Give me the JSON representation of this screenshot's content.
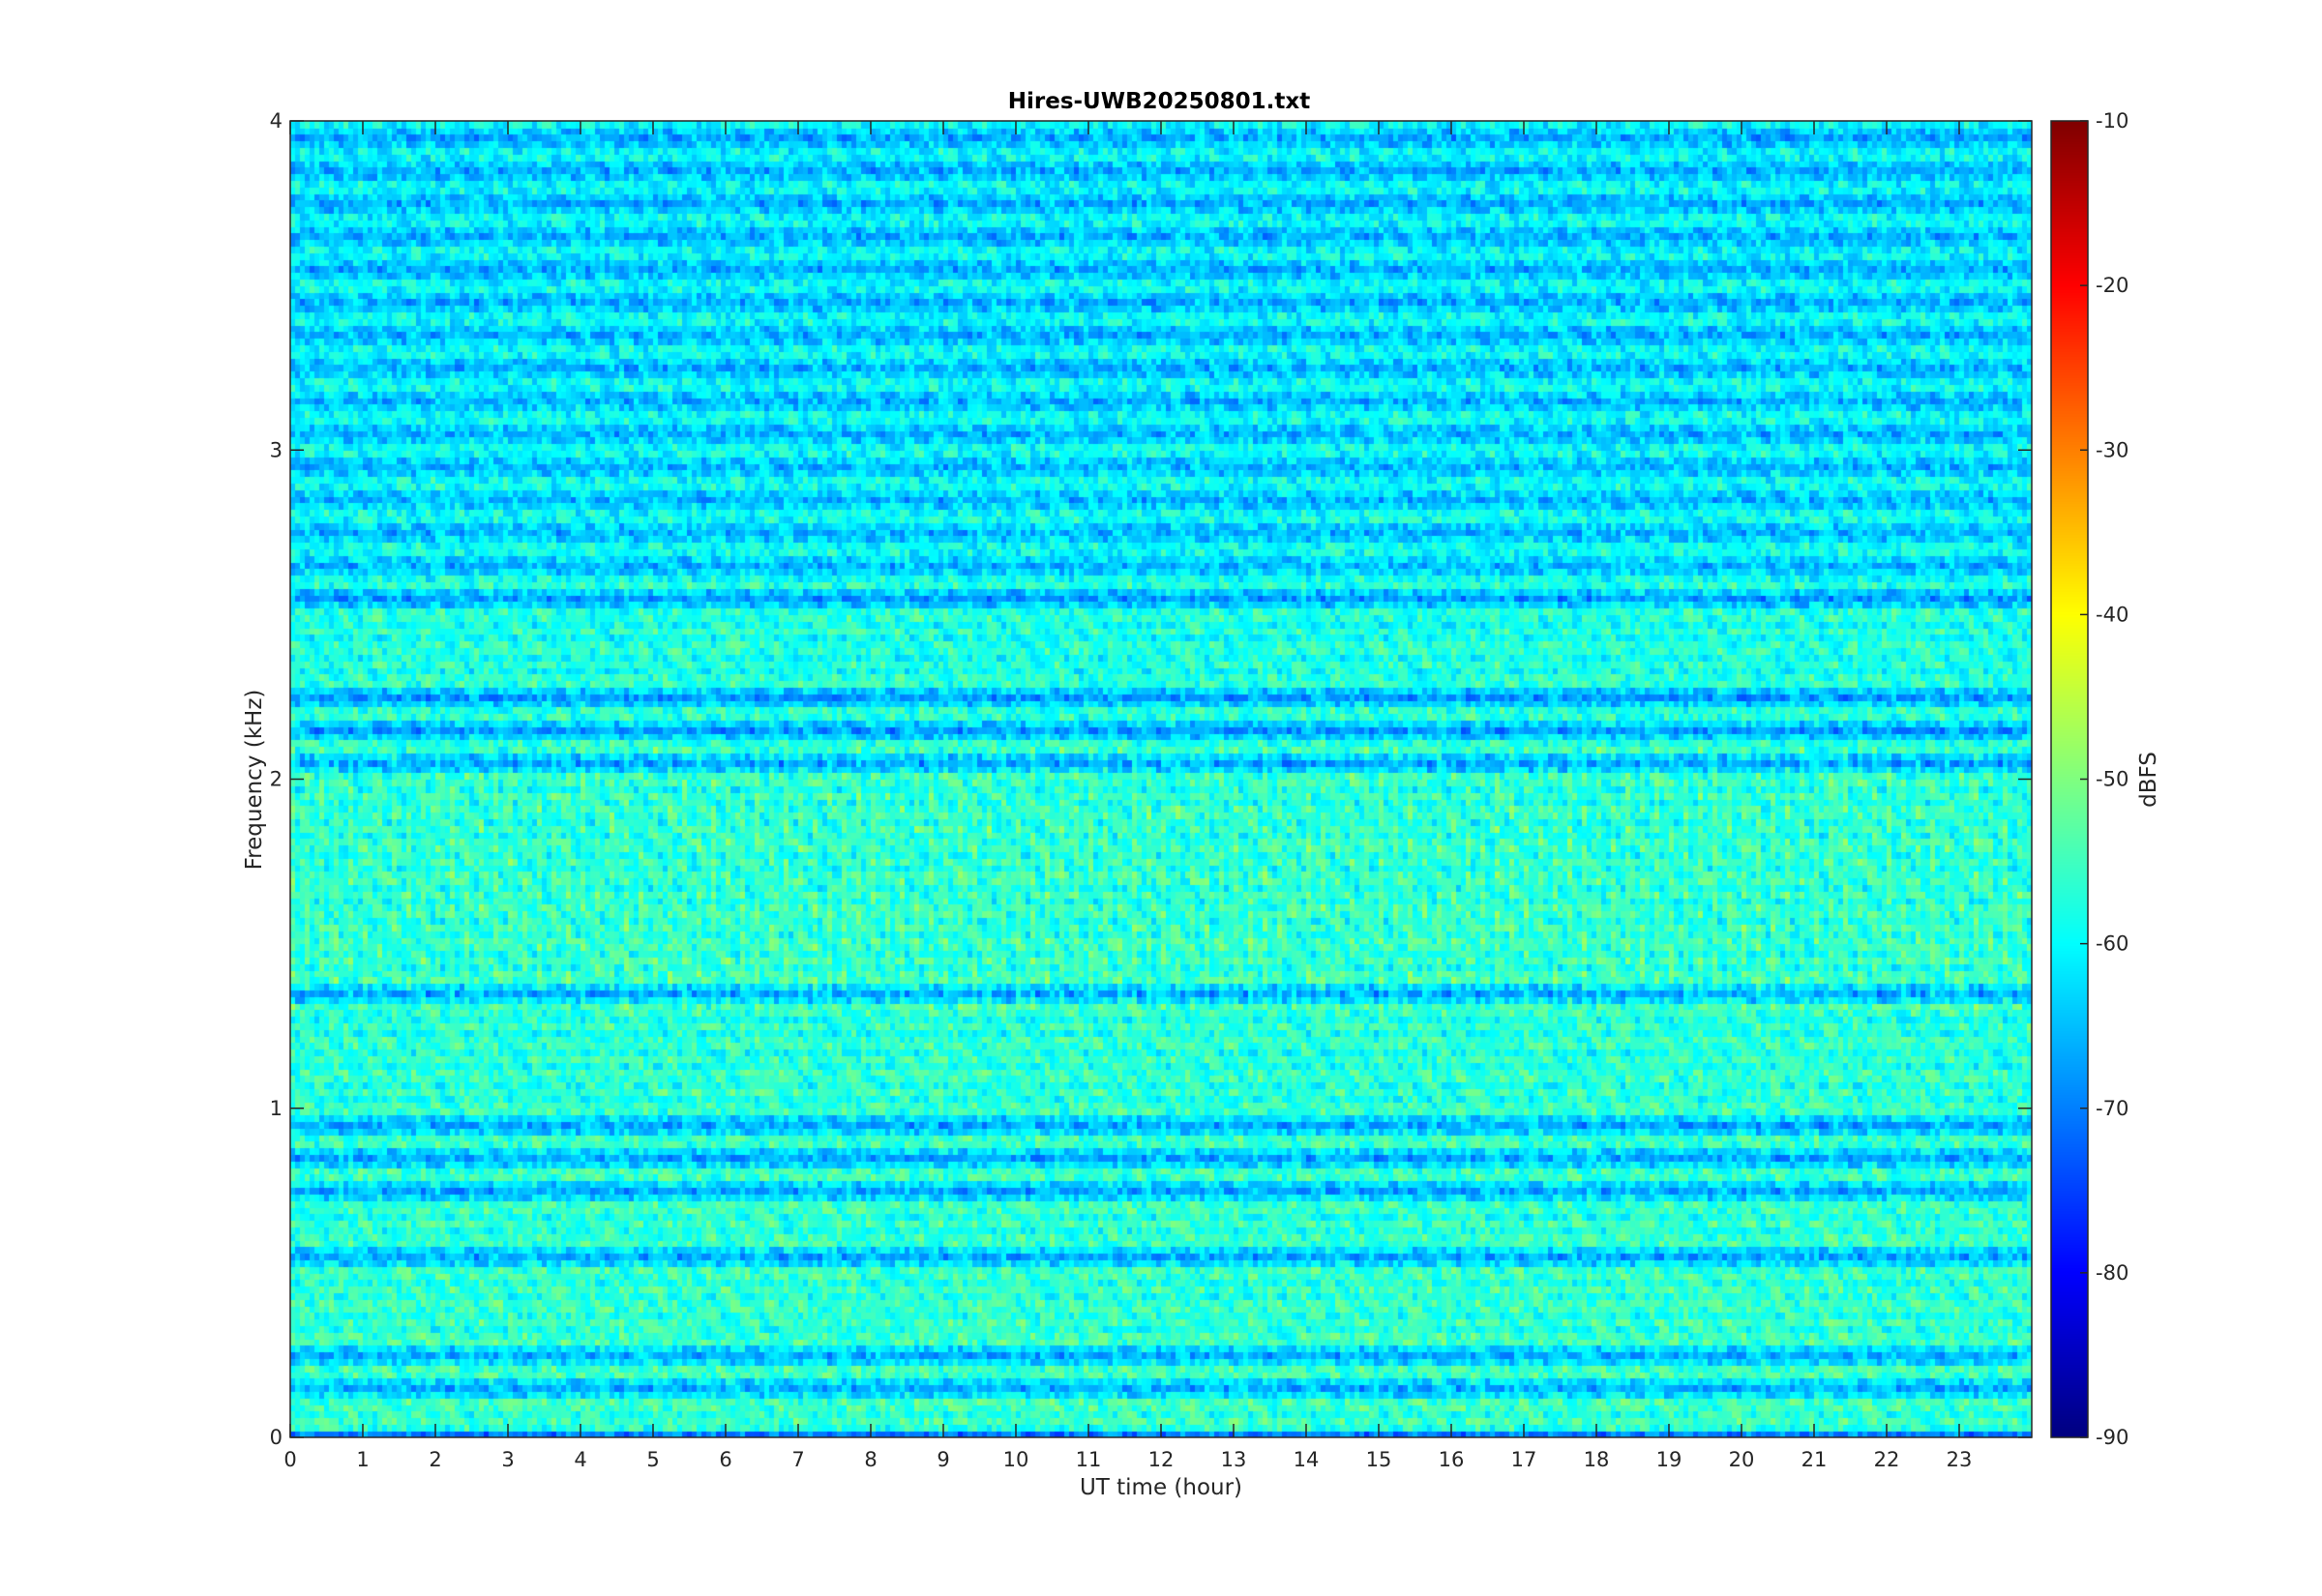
{
  "chart_data": {
    "type": "heatmap",
    "title": "Hires-UWB20250801.txt",
    "xlabel": "UT time (hour)",
    "ylabel": "Frequency (kHz)",
    "xlim": [
      0,
      24
    ],
    "ylim": [
      0,
      4
    ],
    "x_ticks": [
      "0",
      "1",
      "2",
      "3",
      "4",
      "5",
      "6",
      "7",
      "8",
      "9",
      "10",
      "11",
      "12",
      "13",
      "14",
      "15",
      "16",
      "17",
      "18",
      "19",
      "20",
      "21",
      "22",
      "23"
    ],
    "y_ticks": [
      "0",
      "1",
      "2",
      "3",
      "4"
    ],
    "colorbar": {
      "label": "dBFS",
      "range": [
        -90,
        -10
      ],
      "ticks": [
        "-90",
        "-80",
        "-70",
        "-60",
        "-50",
        "-40",
        "-30",
        "-20",
        "-10"
      ],
      "colormap": "jet"
    },
    "series_summary": {
      "bright_bands_khz": [
        0.05,
        0.35,
        0.45,
        0.65,
        1.05,
        1.15,
        1.25,
        1.45,
        1.55,
        1.65,
        1.75,
        1.85,
        1.95,
        2.35,
        2.45
      ],
      "background_level_dbfs": -60
    }
  }
}
